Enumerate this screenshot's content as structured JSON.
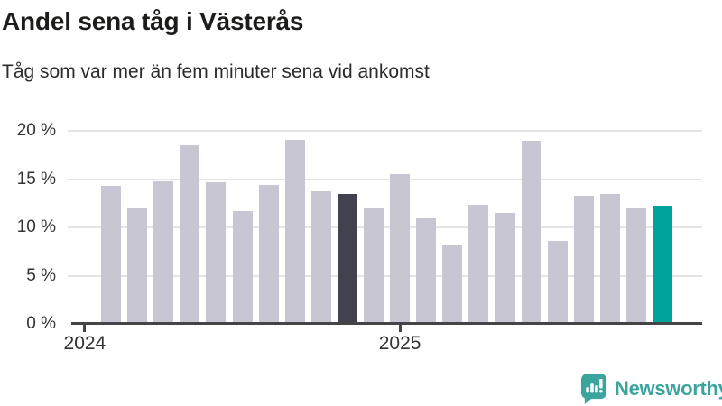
{
  "chart_data": {
    "type": "bar",
    "title": "Andel sena tåg i Västerås",
    "subtitle": "Tåg som var mer än fem minuter sena vid ankomst",
    "unit": "%",
    "ylim": [
      0,
      20
    ],
    "yticks": [
      0,
      5,
      10,
      15,
      20
    ],
    "ytick_labels": [
      "0 %",
      "5 %",
      "10 %",
      "15 %",
      "20 %"
    ],
    "grid": true,
    "legend": "none",
    "values": [
      14.3,
      12.1,
      14.8,
      18.5,
      14.7,
      11.7,
      14.4,
      19.1,
      13.7,
      13.5,
      12.1,
      15.5,
      10.9,
      8.1,
      12.3,
      11.5,
      19.0,
      8.6,
      13.3,
      13.5,
      12.1,
      12.2
    ],
    "highlight": {
      "dark_index": 9,
      "accent_index": 21
    },
    "x_ticks": [
      {
        "label": "2024",
        "slot": -1
      },
      {
        "label": "2025",
        "slot": 11
      }
    ],
    "colors": {
      "bar_default": "#c8c6d2",
      "bar_dark": "#42414e",
      "bar_accent": "#00a39b",
      "grid": "#e4e4e7",
      "axis": "#454548",
      "brand": "#3ba49f"
    }
  },
  "footer": {
    "brand": "Newsworthy"
  }
}
